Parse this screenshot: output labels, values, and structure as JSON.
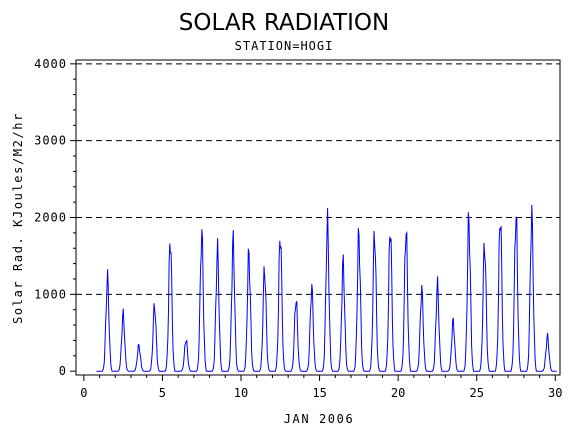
{
  "chart_data": {
    "type": "line",
    "title": "SOLAR RADIATION",
    "subtitle": "STATION=HOGI",
    "xlabel": "JAN 2006",
    "ylabel": "Solar Rad. KJoules/M2/hr",
    "xlim": [
      -0.5,
      30.3
    ],
    "ylim": [
      -50,
      4050
    ],
    "x_ticks": [
      0,
      5,
      10,
      15,
      20,
      25,
      30
    ],
    "x_tick_labels": [
      "0",
      "5",
      "10",
      "15",
      "20",
      "25",
      "30"
    ],
    "y_ticks": [
      0,
      1000,
      2000,
      3000,
      4000
    ],
    "y_tick_labels": [
      "0",
      "1000",
      "2000",
      "3000",
      "4000"
    ],
    "grid": "horizontal dashed at 1000, 2000, 3000, 4000",
    "series_color": "#0000ff",
    "daily_peaks": {
      "day": [
        1,
        2,
        3,
        4,
        5,
        6,
        7,
        8,
        9,
        10,
        11,
        12,
        13,
        14,
        15,
        16,
        17,
        18,
        19,
        20,
        21,
        22,
        23,
        24,
        25,
        26,
        27,
        28,
        29
      ],
      "peak": [
        1350,
        820,
        370,
        950,
        1930,
        460,
        2000,
        1750,
        1870,
        1700,
        1480,
        2000,
        1050,
        1210,
        2140,
        1560,
        1980,
        2000,
        2100,
        2070,
        1180,
        1240,
        720,
        2200,
        1850,
        2270,
        2290,
        2250,
        500
      ]
    }
  }
}
